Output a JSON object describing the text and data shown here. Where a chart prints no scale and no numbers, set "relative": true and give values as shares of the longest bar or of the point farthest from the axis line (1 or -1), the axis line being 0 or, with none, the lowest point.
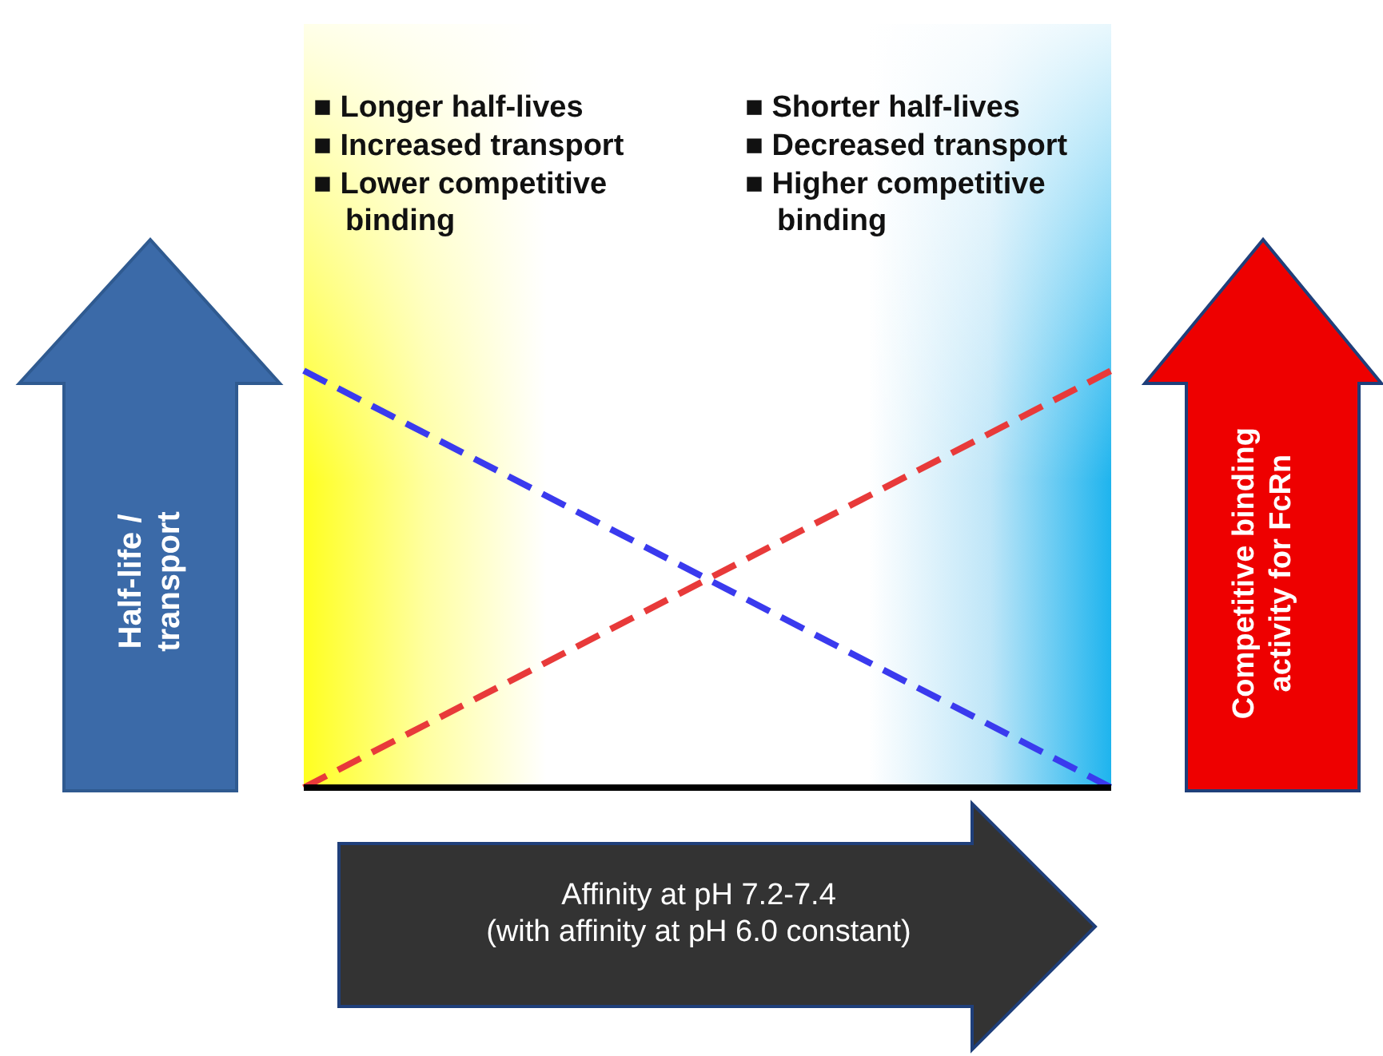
{
  "chart_data": {
    "type": "line",
    "relative": true,
    "categories": [
      null,
      null
    ],
    "xlabel": "Affinity at pH 7.2-7.4\n(with affinity at pH 6.0 constant)",
    "ylabel": "Half-life / transport",
    "y2label": "Competitive binding activity for FcRn",
    "annotations": [
      "■ Longer half-lives\n■ Increased transport\n■ Lower competitive binding",
      "■ Shorter half-lives\n■ Decreased transport\n■ Higher competitive binding"
    ],
    "series": [
      {
        "color": "#3a3aee",
        "values": [
          1,
          0
        ]
      },
      {
        "color": "#e83a3a",
        "values": [
          0,
          1
        ]
      }
    ],
    "ref_lines": [
      {
        "axis": "y",
        "value": 0,
        "color": "#000000"
      }
    ],
    "line_style": "dashed",
    "marker": "none"
  }
}
